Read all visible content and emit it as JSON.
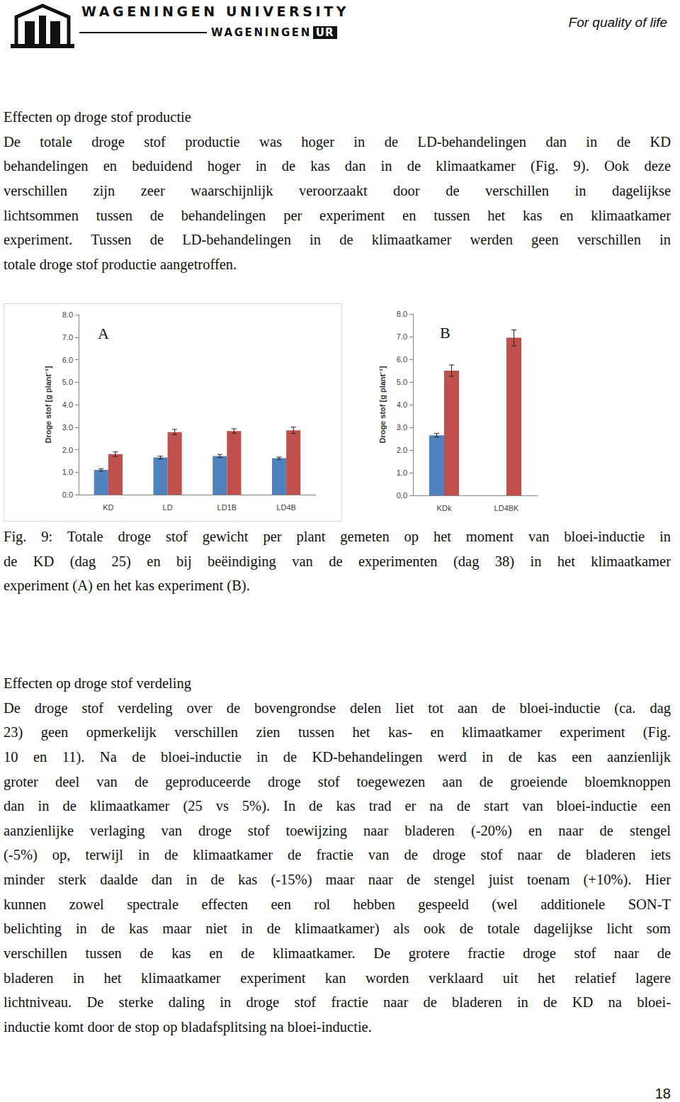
{
  "header": {
    "institution": "WAGENINGEN UNIVERSITY",
    "logo_text": "WAGENINGEN",
    "logo_badge": "UR",
    "slogan": "For quality of life"
  },
  "sections": [
    {
      "heading": "Effecten op droge stof productie",
      "lines": [
        "De totale droge stof productie was hoger in de LD-behandelingen dan in de KD",
        "behandelingen en beduidend hoger in de kas dan in de klimaatkamer (Fig. 9). Ook deze",
        "verschillen zijn zeer waarschijnlijk veroorzaakt door de verschillen in dagelijkse",
        "lichtsommen tussen de behandelingen per experiment en tussen het kas en klimaatkamer",
        "experiment. Tussen de LD-behandelingen in de klimaatkamer werden geen verschillen in",
        "totale droge stof productie aangetroffen."
      ]
    },
    {
      "heading": "Effecten op droge stof verdeling",
      "lines": [
        "De droge stof verdeling over de bovengrondse delen liet tot aan de bloei-inductie (ca. dag",
        "23) geen opmerkelijk verschillen zien tussen het kas- en klimaatkamer experiment (Fig.",
        "10 en 11). Na de bloei-inductie in de KD-behandelingen werd in de kas een aanzienlijk",
        "groter deel van de geproduceerde droge stof toegewezen aan de groeiende bloemknoppen",
        "dan in de klimaatkamer (25 vs 5%). In de kas trad er na de start van bloei-inductie een",
        "aanzienlijke verlaging van droge stof toewijzing naar bladeren (-20%) en naar de stengel",
        "(-5%) op, terwijl in de klimaatkamer de fractie van de droge stof naar de bladeren iets",
        "minder sterk daalde dan in de kas (-15%) maar naar de stengel juist toenam (+10%). Hier",
        "kunnen zowel spectrale effecten een rol hebben gespeeld (wel additionele SON-T",
        "belichting in de kas maar niet in de klimaatkamer) als ook de totale dagelijkse licht som",
        "verschillen tussen de kas en de klimaatkamer. De grotere fractie droge stof naar de",
        "bladeren in het klimaatkamer experiment kan worden verklaard uit het relatief lagere",
        "lichtniveau. De sterke daling in droge stof fractie naar de bladeren in de KD na bloei-",
        "inductie komt door de stop op bladafsplitsing na bloei-inductie."
      ]
    }
  ],
  "chart_data": [
    {
      "type": "bar",
      "annotations": [
        "A"
      ],
      "ylabel": "Droge stof [g plant⁻¹]",
      "categories": [
        "KD",
        "LD",
        "LD1B",
        "LD4B"
      ],
      "series": [
        {
          "color": "#4f81bd",
          "values": [
            1.1,
            1.65,
            1.72,
            1.62
          ],
          "errors": [
            0.05,
            0.06,
            0.07,
            0.05
          ]
        },
        {
          "color": "#c0504d",
          "values": [
            1.8,
            2.78,
            2.83,
            2.86
          ],
          "errors": [
            0.1,
            0.12,
            0.1,
            0.14
          ]
        }
      ],
      "ylim": [
        0,
        8
      ],
      "yticks": [
        {
          "value": 0,
          "label": "0.0"
        },
        {
          "value": 1,
          "label": "1.0"
        },
        {
          "value": 2,
          "label": "2.0"
        },
        {
          "value": 3,
          "label": "3.0"
        },
        {
          "value": 4,
          "label": "4.0"
        },
        {
          "value": 5,
          "label": "5.0"
        },
        {
          "value": 6,
          "label": "6.0"
        },
        {
          "value": 7,
          "label": "7.0"
        },
        {
          "value": 8,
          "label": "8.0"
        }
      ],
      "grid": false
    },
    {
      "type": "bar",
      "annotations": [
        "B"
      ],
      "ylabel": "Droge stof [g plant⁻¹]",
      "categories": [
        "KDk",
        "LD4BK"
      ],
      "series": [
        {
          "color": "#4f81bd",
          "values": [
            2.65,
            null
          ],
          "errors": [
            0.08,
            null
          ]
        },
        {
          "color": "#c0504d",
          "values": [
            5.5,
            6.95
          ],
          "errors": [
            0.25,
            0.35
          ]
        }
      ],
      "ylim": [
        0,
        8
      ],
      "yticks": [
        {
          "value": 0,
          "label": "0.0"
        },
        {
          "value": 1,
          "label": "1.0"
        },
        {
          "value": 2,
          "label": "2.0"
        },
        {
          "value": 3,
          "label": "3.0"
        },
        {
          "value": 4,
          "label": "4.0"
        },
        {
          "value": 5,
          "label": "5.0"
        },
        {
          "value": 6,
          "label": "6.0"
        },
        {
          "value": 7,
          "label": "7.0"
        },
        {
          "value": 8,
          "label": "8.0"
        }
      ],
      "grid": false
    }
  ],
  "caption": {
    "lines": [
      "Fig. 9: Totale droge stof gewicht per plant gemeten op het moment van bloei-inductie in",
      "de KD (dag 25) en bij beëindiging van de experimenten (dag 38) in het klimaatkamer",
      "experiment (A) en het kas experiment (B)."
    ]
  },
  "page_number": 18
}
